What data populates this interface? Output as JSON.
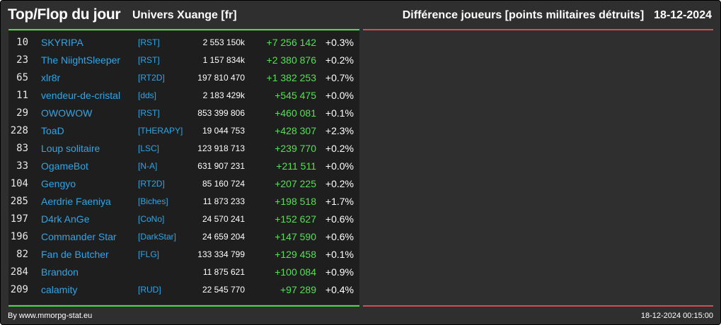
{
  "header": {
    "title": "Top/Flop du jour",
    "universe": "Univers Xuange [fr]",
    "metric": "Différence joueurs [points militaires détruits]",
    "date": "18-12-2024"
  },
  "colors": {
    "background": "#2f2f2f",
    "panel": "#1e1e1e",
    "top_accent": "#4cd94c",
    "flop_accent": "#d94c4c",
    "link": "#2ea6e8",
    "gain": "#55e055"
  },
  "top_rows": [
    {
      "rank": "10",
      "name": "SKYRIPA",
      "tag": "[RST]",
      "points": "2 553 150k",
      "diff": "+7 256 142",
      "pct": "+0.3%"
    },
    {
      "rank": "23",
      "name": "The NiightSleeper",
      "tag": "[RST]",
      "points": "1 157 834k",
      "diff": "+2 380 876",
      "pct": "+0.2%"
    },
    {
      "rank": "65",
      "name": "xlr8r",
      "tag": "[RT2D]",
      "points": "197 810 470",
      "diff": "+1 382 253",
      "pct": "+0.7%"
    },
    {
      "rank": "11",
      "name": "vendeur-de-cristal",
      "tag": "[dds]",
      "points": "2 183 429k",
      "diff": "+545 475",
      "pct": "+0.0%"
    },
    {
      "rank": "29",
      "name": "OWOWOW",
      "tag": "[RST]",
      "points": "853 399 806",
      "diff": "+460 081",
      "pct": "+0.1%"
    },
    {
      "rank": "228",
      "name": "ToaD",
      "tag": "[THERAPY]",
      "points": "19 044 753",
      "diff": "+428 307",
      "pct": "+2.3%"
    },
    {
      "rank": "83",
      "name": "Loup solitaire",
      "tag": "[LSC]",
      "points": "123 918 713",
      "diff": "+239 770",
      "pct": "+0.2%"
    },
    {
      "rank": "33",
      "name": "OgameBot",
      "tag": "[N-A]",
      "points": "631 907 231",
      "diff": "+211 511",
      "pct": "+0.0%"
    },
    {
      "rank": "104",
      "name": "Gengyo",
      "tag": "[RT2D]",
      "points": "85 160 724",
      "diff": "+207 225",
      "pct": "+0.2%"
    },
    {
      "rank": "285",
      "name": "Aerdrie Faeniya",
      "tag": "[Biches]",
      "points": "11 873 233",
      "diff": "+198 518",
      "pct": "+1.7%"
    },
    {
      "rank": "197",
      "name": "D4rk AnGe",
      "tag": "[CoNo]",
      "points": "24 570 241",
      "diff": "+152 627",
      "pct": "+0.6%"
    },
    {
      "rank": "196",
      "name": "Commander Star",
      "tag": "[DarkStar]",
      "points": "24 659 204",
      "diff": "+147 590",
      "pct": "+0.6%"
    },
    {
      "rank": "82",
      "name": "Fan de Butcher",
      "tag": "[FLG]",
      "points": "133 334 799",
      "diff": "+129 458",
      "pct": "+0.1%"
    },
    {
      "rank": "284",
      "name": "Brandon",
      "tag": "",
      "points": "11 875 621",
      "diff": "+100 084",
      "pct": "+0.9%"
    },
    {
      "rank": "209",
      "name": "calamity",
      "tag": "[RUD]",
      "points": "22 545 770",
      "diff": "+97 289",
      "pct": "+0.4%"
    }
  ],
  "footer": {
    "credit": "By www.mmorpg-stat.eu",
    "timestamp": "18-12-2024 00:15:00"
  }
}
